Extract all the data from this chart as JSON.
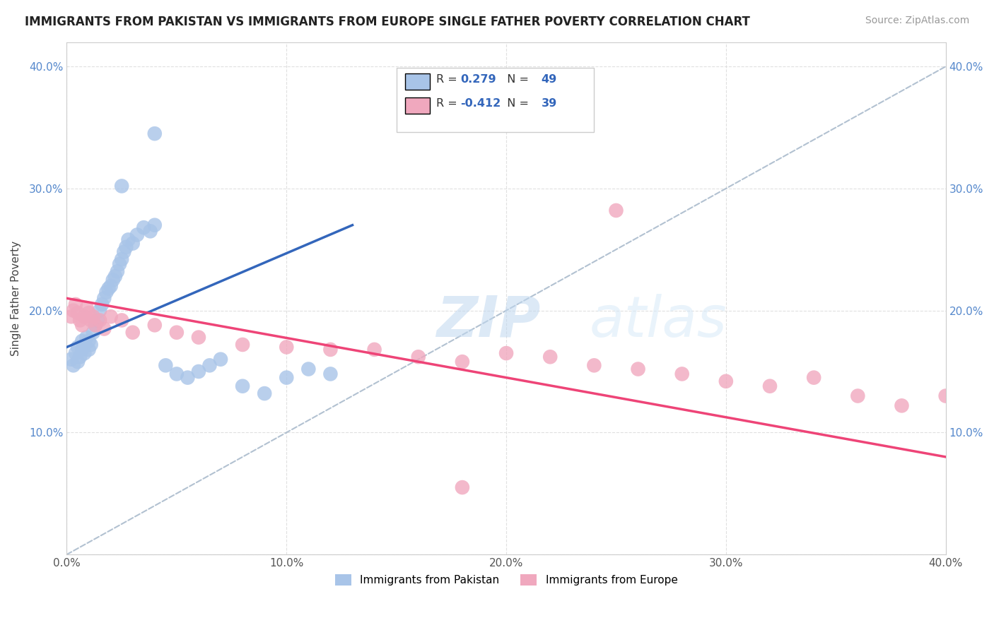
{
  "title": "IMMIGRANTS FROM PAKISTAN VS IMMIGRANTS FROM EUROPE SINGLE FATHER POVERTY CORRELATION CHART",
  "source": "Source: ZipAtlas.com",
  "ylabel": "Single Father Poverty",
  "xlim": [
    0.0,
    0.4
  ],
  "ylim": [
    0.0,
    0.42
  ],
  "xticks": [
    0.0,
    0.1,
    0.2,
    0.3,
    0.4
  ],
  "yticks": [
    0.0,
    0.1,
    0.2,
    0.3,
    0.4
  ],
  "r_pakistan": 0.279,
  "n_pakistan": 49,
  "r_europe": -0.412,
  "n_europe": 39,
  "color_pakistan": "#a8c4e8",
  "color_europe": "#f0a8be",
  "trendline_pakistan_color": "#3366bb",
  "trendline_europe_color": "#ee4477",
  "trendline_dashed_color": "#aabbcc",
  "background_color": "#ffffff",
  "grid_color": "#dddddd",
  "pakistan_x": [
    0.002,
    0.003,
    0.004,
    0.005,
    0.005,
    0.006,
    0.007,
    0.007,
    0.008,
    0.008,
    0.009,
    0.01,
    0.01,
    0.011,
    0.012,
    0.013,
    0.014,
    0.015,
    0.016,
    0.017,
    0.018,
    0.019,
    0.02,
    0.021,
    0.022,
    0.023,
    0.024,
    0.025,
    0.026,
    0.027,
    0.028,
    0.03,
    0.032,
    0.035,
    0.038,
    0.04,
    0.045,
    0.05,
    0.055,
    0.06,
    0.065,
    0.07,
    0.08,
    0.09,
    0.1,
    0.11,
    0.12,
    0.04,
    0.025
  ],
  "pakistan_y": [
    0.16,
    0.155,
    0.165,
    0.17,
    0.158,
    0.162,
    0.168,
    0.175,
    0.172,
    0.165,
    0.178,
    0.175,
    0.168,
    0.172,
    0.182,
    0.188,
    0.192,
    0.2,
    0.205,
    0.21,
    0.215,
    0.218,
    0.22,
    0.225,
    0.228,
    0.232,
    0.238,
    0.242,
    0.248,
    0.252,
    0.258,
    0.255,
    0.262,
    0.268,
    0.265,
    0.27,
    0.155,
    0.148,
    0.145,
    0.15,
    0.155,
    0.16,
    0.138,
    0.132,
    0.145,
    0.152,
    0.148,
    0.345,
    0.302
  ],
  "europe_x": [
    0.002,
    0.003,
    0.004,
    0.005,
    0.006,
    0.007,
    0.008,
    0.009,
    0.01,
    0.011,
    0.012,
    0.013,
    0.015,
    0.017,
    0.02,
    0.025,
    0.03,
    0.04,
    0.05,
    0.06,
    0.08,
    0.1,
    0.12,
    0.14,
    0.16,
    0.18,
    0.2,
    0.22,
    0.24,
    0.26,
    0.28,
    0.3,
    0.32,
    0.34,
    0.36,
    0.38,
    0.4,
    0.25,
    0.18
  ],
  "europe_y": [
    0.195,
    0.2,
    0.205,
    0.198,
    0.192,
    0.188,
    0.195,
    0.202,
    0.198,
    0.192,
    0.195,
    0.188,
    0.192,
    0.185,
    0.195,
    0.192,
    0.182,
    0.188,
    0.182,
    0.178,
    0.172,
    0.17,
    0.168,
    0.168,
    0.162,
    0.158,
    0.165,
    0.162,
    0.155,
    0.152,
    0.148,
    0.142,
    0.138,
    0.145,
    0.13,
    0.122,
    0.13,
    0.282,
    0.055
  ]
}
